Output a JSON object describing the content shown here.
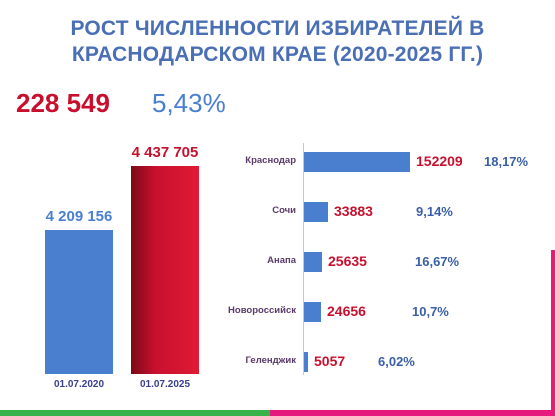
{
  "header": {
    "title_line1": "РОСТ ЧИСЛЕННОСТИ ИЗБИРАТЕЛЕЙ В",
    "title_line2": "КРАСНОДАРСКОМ КРАЕ (2020-2025 ГГ.)"
  },
  "summary": {
    "growth_value": "228 549",
    "growth_percent": "5,43%"
  },
  "colors": {
    "blue": "#4a7fd0",
    "red": "#c8102e",
    "title_blue": "#4a6fb5",
    "green": "#37b34a",
    "pink": "#e6197d"
  },
  "chart_data": [
    {
      "type": "bar",
      "categories": [
        "01.07.2020",
        "01.07.2025"
      ],
      "values": [
        4209156,
        4437705
      ],
      "value_labels": [
        "4 209 156",
        "4 437 705"
      ],
      "bar_colors": [
        "#4a7fd0",
        "#c8102e"
      ],
      "title": "",
      "xlabel": "",
      "ylabel": ""
    },
    {
      "type": "bar",
      "orientation": "horizontal",
      "categories": [
        "Краснодар",
        "Сочи",
        "Анапа",
        "Новороссийск",
        "Геленджик"
      ],
      "values": [
        152209,
        33883,
        25635,
        24656,
        5057
      ],
      "value_labels": [
        "152209",
        "33883",
        "25635",
        "24656",
        "5057"
      ],
      "percent_labels": [
        "18,17%",
        "9,14%",
        "16,67%",
        "10,7%",
        "6,02%"
      ],
      "title": "",
      "xlabel": "",
      "ylabel": ""
    }
  ]
}
